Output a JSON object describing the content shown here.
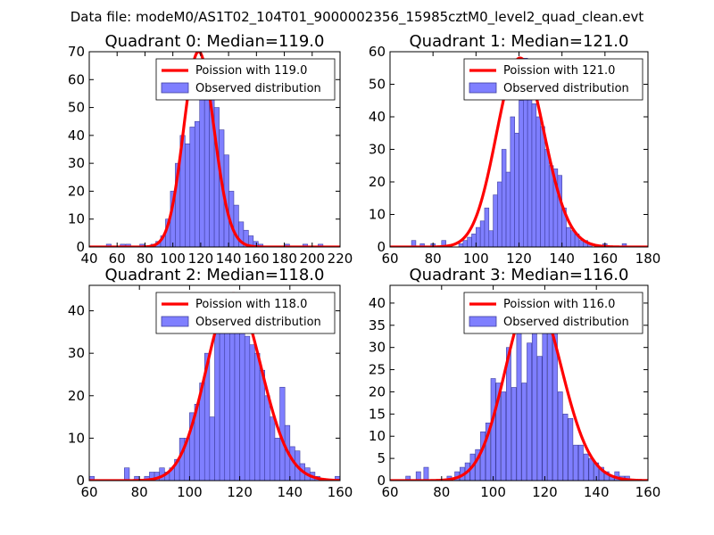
{
  "figure_title": "Data file: modeM0/AS1T02_104T01_9000002356_15985cztM0_level2_quad_clean.evt",
  "colors": {
    "bar_fill": "#7f7fff",
    "bar_edge": "#3f3f9f",
    "fit_line": "#ff0000"
  },
  "chart_data": [
    {
      "type": "bar",
      "title": "Quadrant 0: Median=119.0",
      "xlim": [
        40,
        220
      ],
      "ylim": [
        0,
        70
      ],
      "xticks": [
        40,
        60,
        80,
        100,
        120,
        140,
        160,
        180,
        200,
        220
      ],
      "yticks": [
        0,
        10,
        20,
        30,
        40,
        50,
        60,
        70
      ],
      "bin_width": 3.5,
      "bins": [
        {
          "x": 54,
          "y": 1
        },
        {
          "x": 64,
          "y": 1
        },
        {
          "x": 68,
          "y": 1
        },
        {
          "x": 78,
          "y": 1
        },
        {
          "x": 86,
          "y": 1
        },
        {
          "x": 89.5,
          "y": 2
        },
        {
          "x": 93,
          "y": 4
        },
        {
          "x": 96.5,
          "y": 10
        },
        {
          "x": 100,
          "y": 20
        },
        {
          "x": 103.5,
          "y": 30
        },
        {
          "x": 107,
          "y": 40
        },
        {
          "x": 110.5,
          "y": 37
        },
        {
          "x": 114,
          "y": 43
        },
        {
          "x": 117.5,
          "y": 45
        },
        {
          "x": 121,
          "y": 64
        },
        {
          "x": 124.5,
          "y": 60
        },
        {
          "x": 128,
          "y": 55
        },
        {
          "x": 131.5,
          "y": 50
        },
        {
          "x": 135,
          "y": 42
        },
        {
          "x": 138.5,
          "y": 33
        },
        {
          "x": 142,
          "y": 20
        },
        {
          "x": 145.5,
          "y": 15
        },
        {
          "x": 149,
          "y": 9
        },
        {
          "x": 152.5,
          "y": 6
        },
        {
          "x": 156,
          "y": 4
        },
        {
          "x": 159.5,
          "y": 2
        },
        {
          "x": 163,
          "y": 1
        },
        {
          "x": 182,
          "y": 1
        },
        {
          "x": 195,
          "y": 1
        },
        {
          "x": 206,
          "y": 1
        }
      ],
      "fit": {
        "type": "poisson",
        "mu": 119.0,
        "peak": 70
      },
      "legend": [
        "Poission with 119.0",
        "Observed distribution"
      ],
      "legend_loc": "upper right"
    },
    {
      "type": "bar",
      "title": "Quadrant 1: Median=121.0",
      "xlim": [
        60,
        180
      ],
      "ylim": [
        0,
        60
      ],
      "xticks": [
        60,
        80,
        100,
        120,
        140,
        160,
        180
      ],
      "yticks": [
        0,
        10,
        20,
        30,
        40,
        50,
        60
      ],
      "bin_width": 2,
      "bins": [
        {
          "x": 71,
          "y": 2
        },
        {
          "x": 75,
          "y": 1
        },
        {
          "x": 80,
          "y": 1
        },
        {
          "x": 85,
          "y": 2
        },
        {
          "x": 93,
          "y": 1
        },
        {
          "x": 95,
          "y": 2
        },
        {
          "x": 97,
          "y": 3
        },
        {
          "x": 99,
          "y": 4
        },
        {
          "x": 101,
          "y": 6
        },
        {
          "x": 103,
          "y": 8
        },
        {
          "x": 105,
          "y": 12
        },
        {
          "x": 107,
          "y": 5
        },
        {
          "x": 109,
          "y": 16
        },
        {
          "x": 111,
          "y": 20
        },
        {
          "x": 113,
          "y": 30
        },
        {
          "x": 115,
          "y": 23
        },
        {
          "x": 117,
          "y": 40
        },
        {
          "x": 119,
          "y": 35
        },
        {
          "x": 121,
          "y": 45
        },
        {
          "x": 123,
          "y": 58
        },
        {
          "x": 125,
          "y": 52
        },
        {
          "x": 127,
          "y": 44
        },
        {
          "x": 129,
          "y": 40
        },
        {
          "x": 131,
          "y": 37
        },
        {
          "x": 133,
          "y": 30
        },
        {
          "x": 135,
          "y": 25
        },
        {
          "x": 137,
          "y": 24
        },
        {
          "x": 139,
          "y": 22
        },
        {
          "x": 141,
          "y": 12
        },
        {
          "x": 143,
          "y": 6
        },
        {
          "x": 145,
          "y": 5
        },
        {
          "x": 147,
          "y": 4
        },
        {
          "x": 149,
          "y": 2
        },
        {
          "x": 151,
          "y": 2
        },
        {
          "x": 153,
          "y": 1
        },
        {
          "x": 160,
          "y": 1
        },
        {
          "x": 169,
          "y": 1
        }
      ],
      "fit": {
        "type": "poisson",
        "mu": 121.0,
        "peak": 58
      },
      "legend": [
        "Poission with 121.0",
        "Observed distribution"
      ],
      "legend_loc": "upper right"
    },
    {
      "type": "bar",
      "title": "Quadrant 2: Median=118.0",
      "xlim": [
        60,
        160
      ],
      "ylim": [
        0,
        46
      ],
      "xticks": [
        60,
        80,
        100,
        120,
        140,
        160
      ],
      "yticks": [
        0,
        10,
        20,
        30,
        40
      ],
      "bin_width": 2,
      "bins": [
        {
          "x": 61,
          "y": 1
        },
        {
          "x": 75,
          "y": 3
        },
        {
          "x": 79,
          "y": 1
        },
        {
          "x": 83,
          "y": 1
        },
        {
          "x": 85,
          "y": 2
        },
        {
          "x": 87,
          "y": 2
        },
        {
          "x": 89,
          "y": 3
        },
        {
          "x": 91,
          "y": 2
        },
        {
          "x": 93,
          "y": 3
        },
        {
          "x": 95,
          "y": 5
        },
        {
          "x": 97,
          "y": 10
        },
        {
          "x": 99,
          "y": 10
        },
        {
          "x": 101,
          "y": 16
        },
        {
          "x": 103,
          "y": 18
        },
        {
          "x": 105,
          "y": 23
        },
        {
          "x": 107,
          "y": 30
        },
        {
          "x": 109,
          "y": 15
        },
        {
          "x": 111,
          "y": 35
        },
        {
          "x": 113,
          "y": 36
        },
        {
          "x": 115,
          "y": 40
        },
        {
          "x": 117,
          "y": 38
        },
        {
          "x": 119,
          "y": 40
        },
        {
          "x": 121,
          "y": 37
        },
        {
          "x": 123,
          "y": 34
        },
        {
          "x": 125,
          "y": 32
        },
        {
          "x": 127,
          "y": 30
        },
        {
          "x": 129,
          "y": 26
        },
        {
          "x": 131,
          "y": 20
        },
        {
          "x": 133,
          "y": 15
        },
        {
          "x": 135,
          "y": 10
        },
        {
          "x": 137,
          "y": 22
        },
        {
          "x": 139,
          "y": 13
        },
        {
          "x": 141,
          "y": 8
        },
        {
          "x": 143,
          "y": 7
        },
        {
          "x": 145,
          "y": 4
        },
        {
          "x": 147,
          "y": 3
        },
        {
          "x": 149,
          "y": 2
        },
        {
          "x": 151,
          "y": 1
        },
        {
          "x": 159,
          "y": 1
        }
      ],
      "fit": {
        "type": "poisson",
        "mu": 118.0,
        "peak": 44
      },
      "legend": [
        "Poission with 118.0",
        "Observed distribution"
      ],
      "legend_loc": "upper right"
    },
    {
      "type": "bar",
      "title": "Quadrant 3: Median=116.0",
      "xlim": [
        60,
        160
      ],
      "ylim": [
        0,
        44
      ],
      "xticks": [
        60,
        80,
        100,
        120,
        140,
        160
      ],
      "yticks": [
        0,
        5,
        10,
        15,
        20,
        25,
        30,
        35,
        40
      ],
      "bin_width": 1.8,
      "bins": [
        {
          "x": 67,
          "y": 1
        },
        {
          "x": 71,
          "y": 2
        },
        {
          "x": 74,
          "y": 3
        },
        {
          "x": 83,
          "y": 1
        },
        {
          "x": 86,
          "y": 2
        },
        {
          "x": 88,
          "y": 3
        },
        {
          "x": 90,
          "y": 4
        },
        {
          "x": 92,
          "y": 6
        },
        {
          "x": 94,
          "y": 7
        },
        {
          "x": 96,
          "y": 11
        },
        {
          "x": 98,
          "y": 13
        },
        {
          "x": 100,
          "y": 23
        },
        {
          "x": 102,
          "y": 22
        },
        {
          "x": 104,
          "y": 20
        },
        {
          "x": 106,
          "y": 30
        },
        {
          "x": 108,
          "y": 21
        },
        {
          "x": 110,
          "y": 38
        },
        {
          "x": 112,
          "y": 22
        },
        {
          "x": 114,
          "y": 31
        },
        {
          "x": 116,
          "y": 37
        },
        {
          "x": 118,
          "y": 28
        },
        {
          "x": 120,
          "y": 34
        },
        {
          "x": 122,
          "y": 35
        },
        {
          "x": 124,
          "y": 34
        },
        {
          "x": 126,
          "y": 20
        },
        {
          "x": 128,
          "y": 15
        },
        {
          "x": 130,
          "y": 14
        },
        {
          "x": 132,
          "y": 8
        },
        {
          "x": 134,
          "y": 8
        },
        {
          "x": 136,
          "y": 6
        },
        {
          "x": 138,
          "y": 5
        },
        {
          "x": 140,
          "y": 4
        },
        {
          "x": 142,
          "y": 3
        },
        {
          "x": 144,
          "y": 2
        },
        {
          "x": 146,
          "y": 1
        },
        {
          "x": 148,
          "y": 2
        },
        {
          "x": 150,
          "y": 1
        },
        {
          "x": 152,
          "y": 1
        }
      ],
      "fit": {
        "type": "poisson",
        "mu": 116.0,
        "peak": 42
      },
      "legend": [
        "Poission with 116.0",
        "Observed distribution"
      ],
      "legend_loc": "upper right"
    }
  ]
}
